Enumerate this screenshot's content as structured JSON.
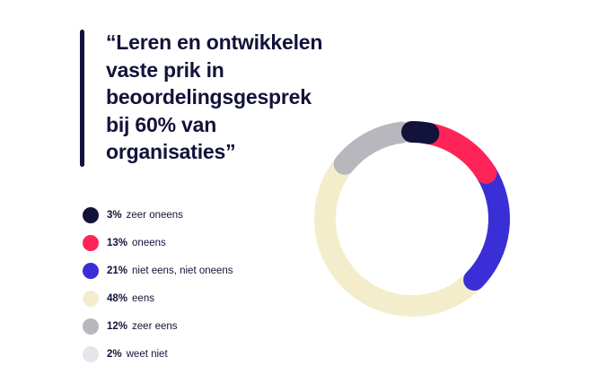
{
  "title": "“Leren en ontwikkelen\nvaste prik in\nbeoordelingsgesprek\nbij 60% van\norganisaties”",
  "chart_data": {
    "type": "pie",
    "variant": "donut",
    "categories": [
      "zeer oneens",
      "oneens",
      "niet eens, niet oneens",
      "eens",
      "zeer eens",
      "weet niet"
    ],
    "values": [
      3,
      13,
      21,
      48,
      12,
      2
    ],
    "colors": [
      "#12123a",
      "#ff2457",
      "#3a2fd6",
      "#f4edcc",
      "#b7b7bd",
      "#e6e6ea"
    ],
    "unit": "%",
    "legend_position": "left"
  },
  "legend": [
    {
      "pct": "3%",
      "label": "zeer oneens",
      "color": "#12123a"
    },
    {
      "pct": "13%",
      "label": "oneens",
      "color": "#ff2457"
    },
    {
      "pct": "21%",
      "label": "niet eens, niet oneens",
      "color": "#3a2fd6"
    },
    {
      "pct": "48%",
      "label": "eens",
      "color": "#f4edcc"
    },
    {
      "pct": "12%",
      "label": "zeer eens",
      "color": "#b7b7bd"
    },
    {
      "pct": "2%",
      "label": "weet niet",
      "color": "#e6e6ea"
    }
  ]
}
